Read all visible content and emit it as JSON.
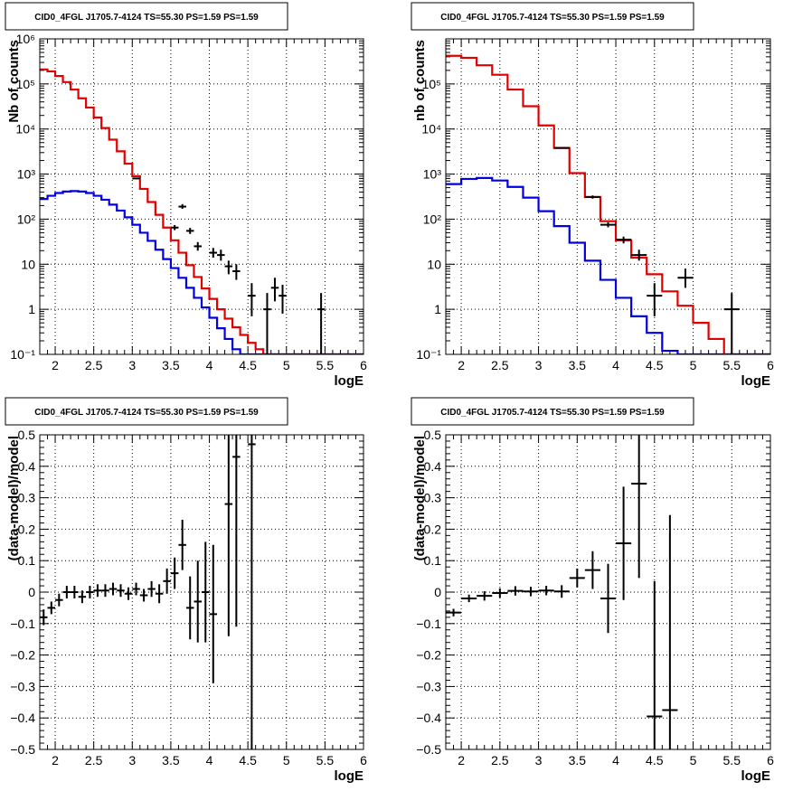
{
  "chart_data": [
    {
      "type": "line",
      "title": "CID0_4FGL J1705.7-4124 TS=55.30 PS=1.59 PS=1.59",
      "xlabel": "logE",
      "ylabel": "Nb of counts",
      "xlim": [
        1.8,
        6.0
      ],
      "ylim": [
        0.1,
        1000000
      ],
      "yscale": "log",
      "xticks": [
        2,
        2.5,
        3,
        3.5,
        4,
        4.5,
        5,
        5.5,
        6
      ],
      "xtick_labels": [
        "2",
        "2.5",
        "3",
        "3.5",
        "4",
        "4.5",
        "5",
        "5.5",
        "6"
      ],
      "yticks": [
        0.1,
        1,
        10,
        100,
        1000,
        10000,
        100000,
        1000000
      ],
      "ytick_labels": [
        "10⁻¹",
        "1",
        "10",
        "10²",
        "10³",
        "10⁴",
        "10⁵",
        "10⁶"
      ],
      "grid": true,
      "series": [
        {
          "style": "step",
          "color": "#e00000",
          "edges": [
            1.8,
            1.9,
            2.0,
            2.1,
            2.2,
            2.3,
            2.4,
            2.5,
            2.6,
            2.7,
            2.8,
            2.9,
            3.0,
            3.1,
            3.2,
            3.3,
            3.4,
            3.5,
            3.6,
            3.7,
            3.8,
            3.9,
            4.0,
            4.1,
            4.2,
            4.3,
            4.4,
            4.5,
            4.6,
            4.7,
            4.8,
            4.9,
            5.0,
            5.1,
            5.2,
            5.3,
            5.4,
            5.5,
            5.6,
            5.7,
            5.8,
            5.9,
            6.0
          ],
          "values": [
            210000,
            190000,
            150000,
            110000,
            75000,
            48000,
            30000,
            18000,
            10500,
            5800,
            3200,
            1700,
            900,
            470,
            240,
            125,
            65,
            34,
            18,
            9.5,
            5.2,
            2.9,
            1.7,
            1.0,
            0.62,
            0.4,
            0.27,
            0.18,
            0.13,
            0.1,
            0.1,
            0.1,
            0.1,
            0.1,
            0.1,
            0.1,
            0.1,
            0.1,
            0.1,
            0.1,
            0.1,
            0.1
          ]
        },
        {
          "style": "step",
          "color": "#0000e0",
          "edges": [
            1.8,
            1.9,
            2.0,
            2.1,
            2.2,
            2.3,
            2.4,
            2.5,
            2.6,
            2.7,
            2.8,
            2.9,
            3.0,
            3.1,
            3.2,
            3.3,
            3.4,
            3.5,
            3.6,
            3.7,
            3.8,
            3.9,
            4.0,
            4.1,
            4.2,
            4.3,
            4.4,
            4.5,
            4.6,
            4.7,
            4.8,
            4.9,
            5.0,
            5.1,
            5.2,
            5.3,
            5.4,
            5.5,
            5.6,
            5.7,
            5.8,
            5.9,
            6.0
          ],
          "values": [
            280,
            330,
            380,
            410,
            420,
            410,
            380,
            330,
            270,
            210,
            155,
            110,
            75,
            50,
            33,
            21,
            13,
            8.2,
            5.0,
            3.0,
            1.8,
            1.1,
            0.65,
            0.38,
            0.22,
            0.13,
            0.1,
            0.1,
            0.1,
            0.1,
            0.1,
            0.1,
            0.1,
            0.1,
            0.1,
            0.1,
            0.1,
            0.1,
            0.1,
            0.1,
            0.1,
            0.1
          ]
        },
        {
          "style": "errorbars",
          "color": "#000000",
          "points": [
            {
              "x": 3.05,
              "y": 800,
              "xerr": 0.05,
              "ylo": 770,
              "yhi": 830
            },
            {
              "x": 3.55,
              "y": 65,
              "xerr": 0.05,
              "ylo": 57,
              "yhi": 74
            },
            {
              "x": 3.65,
              "y": 190,
              "xerr": 0.05,
              "ylo": 170,
              "yhi": 215
            },
            {
              "x": 3.75,
              "y": 55,
              "xerr": 0.05,
              "ylo": 47,
              "yhi": 64
            },
            {
              "x": 3.85,
              "y": 25,
              "xerr": 0.05,
              "ylo": 20,
              "yhi": 31
            },
            {
              "x": 4.05,
              "y": 18,
              "xerr": 0.05,
              "ylo": 14,
              "yhi": 23
            },
            {
              "x": 4.15,
              "y": 16,
              "xerr": 0.05,
              "ylo": 12,
              "yhi": 21
            },
            {
              "x": 4.25,
              "y": 9,
              "xerr": 0.05,
              "ylo": 6,
              "yhi": 12
            },
            {
              "x": 4.35,
              "y": 7,
              "xerr": 0.05,
              "ylo": 4.5,
              "yhi": 10
            },
            {
              "x": 4.55,
              "y": 2,
              "xerr": 0.05,
              "ylo": 0.7,
              "yhi": 3.8
            },
            {
              "x": 4.75,
              "y": 1,
              "xerr": 0.05,
              "ylo": 0.1,
              "yhi": 2.3
            },
            {
              "x": 4.85,
              "y": 3,
              "xerr": 0.05,
              "ylo": 1.5,
              "yhi": 5
            },
            {
              "x": 4.95,
              "y": 2,
              "xerr": 0.05,
              "ylo": 0.8,
              "yhi": 3.5
            },
            {
              "x": 5.45,
              "y": 1,
              "xerr": 0.05,
              "ylo": 0.1,
              "yhi": 2.3
            }
          ]
        }
      ]
    },
    {
      "type": "line",
      "title": "CID0_4FGL J1705.7-4124 TS=55.30 PS=1.59 PS=1.59",
      "xlabel": "logE",
      "ylabel": "nb of counts",
      "xlim": [
        1.8,
        6.0
      ],
      "ylim": [
        0.1,
        1000000
      ],
      "yscale": "log",
      "xticks": [
        2,
        2.5,
        3,
        3.5,
        4,
        4.5,
        5,
        5.5,
        6
      ],
      "xtick_labels": [
        "2",
        "2.5",
        "3",
        "3.5",
        "4",
        "4.5",
        "5",
        "5.5",
        "6"
      ],
      "yticks": [
        0.1,
        1,
        10,
        100,
        1000,
        10000,
        100000
      ],
      "ytick_labels": [
        "10⁻¹",
        "1",
        "10",
        "10²",
        "10³",
        "10⁴",
        "10⁵"
      ],
      "grid": true,
      "series": [
        {
          "style": "step",
          "color": "#e00000",
          "edges": [
            1.8,
            2.0,
            2.2,
            2.4,
            2.6,
            2.8,
            3.0,
            3.2,
            3.4,
            3.6,
            3.8,
            4.0,
            4.2,
            4.4,
            4.6,
            4.8,
            5.0,
            5.2,
            5.4,
            5.6,
            5.8,
            6.0
          ],
          "values": [
            420000,
            380000,
            260000,
            160000,
            75000,
            32000,
            12000,
            3800,
            1050,
            310,
            90,
            34,
            14,
            6,
            2.5,
            1.2,
            0.5,
            0.22,
            0.1,
            0.1,
            0.1
          ]
        },
        {
          "style": "step",
          "color": "#0000e0",
          "edges": [
            1.8,
            2.0,
            2.2,
            2.4,
            2.6,
            2.8,
            3.0,
            3.2,
            3.4,
            3.6,
            3.8,
            4.0,
            4.2,
            4.4,
            4.6,
            4.8,
            5.0,
            5.2,
            5.4,
            5.6,
            5.8,
            6.0
          ],
          "values": [
            600,
            780,
            820,
            720,
            520,
            300,
            150,
            70,
            30,
            12,
            4.5,
            1.8,
            0.7,
            0.3,
            0.12,
            0.1,
            0.1,
            0.1,
            0.1,
            0.1,
            0.1
          ]
        },
        {
          "style": "errorbars",
          "color": "#000000",
          "points": [
            {
              "x": 3.3,
              "y": 3800,
              "xerr": 0.1,
              "ylo": 3650,
              "yhi": 3950
            },
            {
              "x": 3.7,
              "y": 310,
              "xerr": 0.1,
              "ylo": 285,
              "yhi": 335
            },
            {
              "x": 3.9,
              "y": 75,
              "xerr": 0.1,
              "ylo": 66,
              "yhi": 85
            },
            {
              "x": 4.1,
              "y": 35,
              "xerr": 0.1,
              "ylo": 29,
              "yhi": 41
            },
            {
              "x": 4.3,
              "y": 16,
              "xerr": 0.1,
              "ylo": 12,
              "yhi": 21
            },
            {
              "x": 4.5,
              "y": 2,
              "xerr": 0.1,
              "ylo": 0.7,
              "yhi": 3.8
            },
            {
              "x": 4.9,
              "y": 5,
              "xerr": 0.1,
              "ylo": 3,
              "yhi": 8
            },
            {
              "x": 5.5,
              "y": 1,
              "xerr": 0.1,
              "ylo": 0.1,
              "yhi": 2.3
            }
          ]
        }
      ]
    },
    {
      "type": "scatter",
      "title": "CID0_4FGL J1705.7-4124 TS=55.30 PS=1.59 PS=1.59",
      "xlabel": "logE",
      "ylabel": "(data-model)/model",
      "xlim": [
        1.8,
        6.0
      ],
      "ylim": [
        -0.5,
        0.5
      ],
      "yscale": "linear",
      "xticks": [
        2,
        2.5,
        3,
        3.5,
        4,
        4.5,
        5,
        5.5,
        6
      ],
      "xtick_labels": [
        "2",
        "2.5",
        "3",
        "3.5",
        "4",
        "4.5",
        "5",
        "5.5",
        "6"
      ],
      "yticks": [
        -0.5,
        -0.4,
        -0.3,
        -0.2,
        -0.1,
        0,
        0.1,
        0.2,
        0.3,
        0.4,
        0.5
      ],
      "ytick_labels": [
        "−0.5",
        "−0.4",
        "−0.3",
        "−0.2",
        "−0.1",
        "0",
        "0.1",
        "0.2",
        "0.3",
        "0.4",
        "0.5"
      ],
      "grid": true,
      "series": [
        {
          "style": "errorbars",
          "color": "#000000",
          "points": [
            {
              "x": 1.85,
              "y": -0.08,
              "xerr": 0.05,
              "yerr": 0.025
            },
            {
              "x": 1.95,
              "y": -0.05,
              "xerr": 0.05,
              "yerr": 0.02
            },
            {
              "x": 2.05,
              "y": -0.025,
              "xerr": 0.05,
              "yerr": 0.02
            },
            {
              "x": 2.15,
              "y": 0.0,
              "xerr": 0.05,
              "yerr": 0.02
            },
            {
              "x": 2.25,
              "y": 0.0,
              "xerr": 0.05,
              "yerr": 0.02
            },
            {
              "x": 2.35,
              "y": -0.015,
              "xerr": 0.05,
              "yerr": 0.02
            },
            {
              "x": 2.45,
              "y": 0.0,
              "xerr": 0.05,
              "yerr": 0.02
            },
            {
              "x": 2.55,
              "y": 0.005,
              "xerr": 0.05,
              "yerr": 0.02
            },
            {
              "x": 2.65,
              "y": 0.005,
              "xerr": 0.05,
              "yerr": 0.02
            },
            {
              "x": 2.75,
              "y": 0.01,
              "xerr": 0.05,
              "yerr": 0.02
            },
            {
              "x": 2.85,
              "y": 0.005,
              "xerr": 0.05,
              "yerr": 0.02
            },
            {
              "x": 2.95,
              "y": -0.005,
              "xerr": 0.05,
              "yerr": 0.02
            },
            {
              "x": 3.05,
              "y": 0.01,
              "xerr": 0.05,
              "yerr": 0.02
            },
            {
              "x": 3.15,
              "y": -0.01,
              "xerr": 0.05,
              "yerr": 0.02
            },
            {
              "x": 3.25,
              "y": 0.01,
              "xerr": 0.05,
              "yerr": 0.025
            },
            {
              "x": 3.35,
              "y": -0.005,
              "xerr": 0.05,
              "yerr": 0.03
            },
            {
              "x": 3.45,
              "y": 0.035,
              "xerr": 0.05,
              "yerr": 0.04
            },
            {
              "x": 3.55,
              "y": 0.06,
              "xerr": 0.05,
              "yerr": 0.05
            },
            {
              "x": 3.65,
              "y": 0.15,
              "xerr": 0.05,
              "yerr": 0.08
            },
            {
              "x": 3.75,
              "y": -0.05,
              "xerr": 0.05,
              "yerr": 0.1
            },
            {
              "x": 3.85,
              "y": -0.03,
              "xerr": 0.05,
              "yerr": 0.13
            },
            {
              "x": 3.95,
              "y": 0.0,
              "xerr": 0.05,
              "yerr": 0.16
            },
            {
              "x": 4.05,
              "y": -0.07,
              "xerr": 0.05,
              "yerr": 0.22
            },
            {
              "x": 4.25,
              "y": 0.28,
              "xerr": 0.05,
              "yerr": 0.42
            },
            {
              "x": 4.35,
              "y": 0.43,
              "xerr": 0.05,
              "yerr": 0.54
            },
            {
              "x": 4.55,
              "y": 0.47,
              "xerr": 0.05,
              "yerr": 0.98
            }
          ]
        }
      ]
    },
    {
      "type": "scatter",
      "title": "CID0_4FGL J1705.7-4124 TS=55.30 PS=1.59 PS=1.59",
      "xlabel": "logE",
      "ylabel": "(data-model)/model",
      "xlim": [
        1.8,
        6.0
      ],
      "ylim": [
        -0.5,
        0.5
      ],
      "yscale": "linear",
      "xticks": [
        2,
        2.5,
        3,
        3.5,
        4,
        4.5,
        5,
        5.5,
        6
      ],
      "xtick_labels": [
        "2",
        "2.5",
        "3",
        "3.5",
        "4",
        "4.5",
        "5",
        "5.5",
        "6"
      ],
      "yticks": [
        -0.5,
        -0.4,
        -0.3,
        -0.2,
        -0.1,
        0,
        0.1,
        0.2,
        0.3,
        0.4,
        0.5
      ],
      "ytick_labels": [
        "−0.5",
        "−0.4",
        "−0.3",
        "−0.2",
        "−0.1",
        "0",
        "0.1",
        "0.2",
        "0.3",
        "0.4",
        "0.5"
      ],
      "grid": true,
      "series": [
        {
          "style": "errorbars",
          "color": "#000000",
          "points": [
            {
              "x": 1.9,
              "y": -0.065,
              "xerr": 0.1,
              "yerr": 0.012
            },
            {
              "x": 2.1,
              "y": -0.02,
              "xerr": 0.1,
              "yerr": 0.012
            },
            {
              "x": 2.3,
              "y": -0.012,
              "xerr": 0.1,
              "yerr": 0.015
            },
            {
              "x": 2.5,
              "y": -0.003,
              "xerr": 0.1,
              "yerr": 0.015
            },
            {
              "x": 2.7,
              "y": 0.004,
              "xerr": 0.1,
              "yerr": 0.015
            },
            {
              "x": 2.9,
              "y": 0.002,
              "xerr": 0.1,
              "yerr": 0.015
            },
            {
              "x": 3.1,
              "y": 0.005,
              "xerr": 0.1,
              "yerr": 0.015
            },
            {
              "x": 3.3,
              "y": 0.002,
              "xerr": 0.1,
              "yerr": 0.02
            },
            {
              "x": 3.5,
              "y": 0.045,
              "xerr": 0.1,
              "yerr": 0.03
            },
            {
              "x": 3.7,
              "y": 0.07,
              "xerr": 0.1,
              "yerr": 0.06
            },
            {
              "x": 3.9,
              "y": -0.02,
              "xerr": 0.1,
              "yerr": 0.11
            },
            {
              "x": 4.1,
              "y": 0.155,
              "xerr": 0.1,
              "yerr": 0.18
            },
            {
              "x": 4.3,
              "y": 0.345,
              "xerr": 0.1,
              "yerr": 0.3
            },
            {
              "x": 4.5,
              "y": -0.395,
              "xerr": 0.1,
              "yerr": 0.43
            },
            {
              "x": 4.7,
              "y": -0.375,
              "xerr": 0.1,
              "yerr": 0.62
            }
          ]
        }
      ]
    }
  ]
}
